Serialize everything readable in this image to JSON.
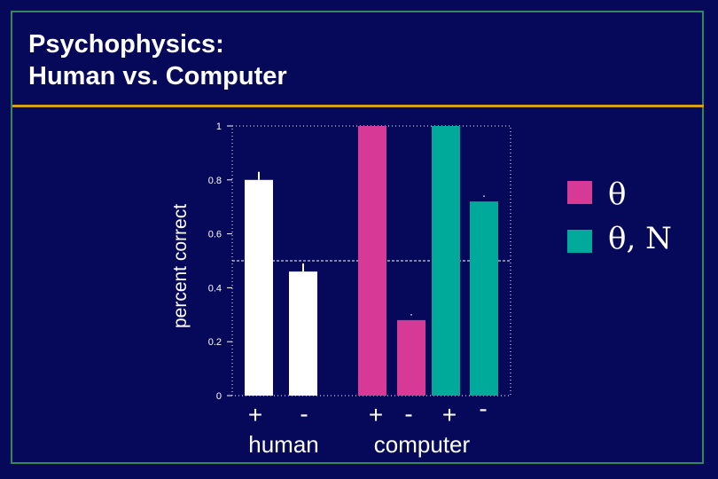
{
  "slide": {
    "title_line1": "Psychophysics:",
    "title_line2": "Human vs. Computer"
  },
  "colors": {
    "background": "#06085a",
    "frame": "#2e8b57",
    "divider": "#d4a017",
    "white": "#ffffff",
    "magenta": "#d63a96",
    "teal": "#00aa9a"
  },
  "chart_data": {
    "type": "bar",
    "ylabel": "percent correct",
    "ylim": [
      0,
      1
    ],
    "yticks": [
      "0",
      "0.2",
      "0.4",
      "0.6",
      "0.8",
      "1"
    ],
    "ytick_values": [
      0,
      0.2,
      0.4,
      0.6,
      0.8,
      1
    ],
    "chance_line": 0.5,
    "bars": [
      {
        "group": "human",
        "sign": "+",
        "value": 0.8,
        "error": 0.03,
        "color": "white"
      },
      {
        "group": "human",
        "sign": "-",
        "value": 0.46,
        "error": 0.03,
        "color": "white"
      },
      {
        "group": "computer",
        "sign": "+",
        "value": 1.0,
        "error": 0,
        "color": "magenta"
      },
      {
        "group": "computer",
        "sign": "-",
        "value": 0.28,
        "error": 0,
        "color": "magenta"
      },
      {
        "group": "computer",
        "sign": "+",
        "value": 1.0,
        "error": 0,
        "color": "teal"
      },
      {
        "group": "computer",
        "sign": "-",
        "value": 0.72,
        "error": 0,
        "color": "teal"
      }
    ],
    "group_labels": [
      "human",
      "computer"
    ],
    "legend": [
      {
        "label": "θ",
        "color": "magenta"
      },
      {
        "label": "θ, N",
        "color": "teal"
      }
    ],
    "legend_position": "right"
  }
}
